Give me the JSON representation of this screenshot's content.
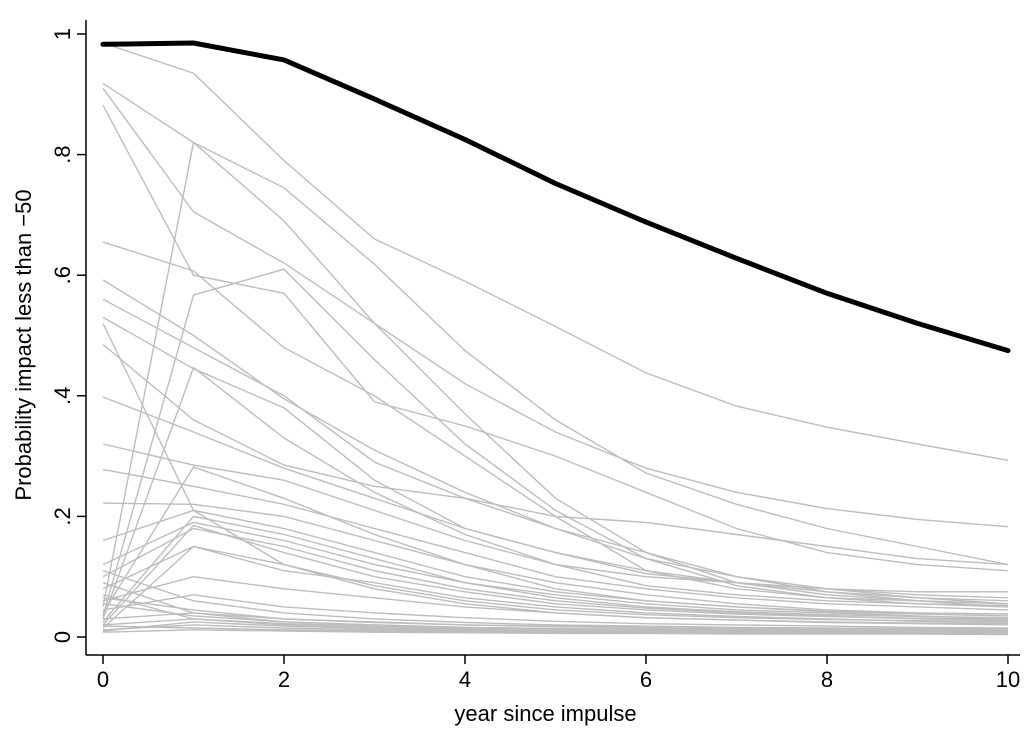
{
  "chart_data": {
    "type": "line",
    "title": "",
    "xlabel": "year since impulse",
    "ylabel": "Probability impact less than −50",
    "xlim": [
      0,
      10
    ],
    "ylim": [
      0,
      1
    ],
    "x_ticks": [
      0,
      2,
      4,
      6,
      8,
      10
    ],
    "x_tick_labels": [
      "0",
      "2",
      "4",
      "6",
      "8",
      "10"
    ],
    "y_ticks": [
      0,
      0.2,
      0.4,
      0.6,
      0.8,
      1
    ],
    "y_tick_labels": [
      "0",
      ".2",
      ".4",
      ".6",
      ".8",
      "1"
    ],
    "grid": false,
    "legend": "none",
    "x": [
      0,
      1,
      2,
      3,
      4,
      5,
      6,
      7,
      8,
      9,
      10
    ],
    "highlight_color": "#000000",
    "background_color": "#bdbdbd",
    "highlight_series": {
      "values": [
        0.983,
        0.985,
        0.957,
        0.892,
        0.825,
        0.752,
        0.688,
        0.628,
        0.57,
        0.52,
        0.475
      ]
    },
    "background_series": [
      {
        "values": [
          0.985,
          0.935,
          0.79,
          0.66,
          0.59,
          0.515,
          0.438,
          0.383,
          0.348,
          0.32,
          0.293
        ]
      },
      {
        "values": [
          0.918,
          0.82,
          0.745,
          0.618,
          0.475,
          0.36,
          0.272,
          0.22,
          0.18,
          0.15,
          0.12
        ]
      },
      {
        "values": [
          0.91,
          0.705,
          0.62,
          0.52,
          0.42,
          0.34,
          0.28,
          0.24,
          0.213,
          0.195,
          0.183
        ]
      },
      {
        "values": [
          0.882,
          0.6,
          0.57,
          0.39,
          0.35,
          0.3,
          0.24,
          0.18,
          0.14,
          0.12,
          0.11
        ]
      },
      {
        "values": [
          0.655,
          0.607,
          0.48,
          0.4,
          0.3,
          0.2,
          0.11,
          0.08,
          0.065,
          0.06,
          0.055
        ]
      },
      {
        "values": [
          0.592,
          0.5,
          0.395,
          0.31,
          0.24,
          0.18,
          0.13,
          0.1,
          0.08,
          0.065,
          0.055
        ]
      },
      {
        "values": [
          0.56,
          0.48,
          0.4,
          0.29,
          0.23,
          0.18,
          0.14,
          0.1,
          0.075,
          0.06,
          0.05
        ]
      },
      {
        "values": [
          0.53,
          0.445,
          0.38,
          0.26,
          0.18,
          0.14,
          0.105,
          0.09,
          0.08,
          0.075,
          0.075
        ]
      },
      {
        "values": [
          0.485,
          0.36,
          0.285,
          0.25,
          0.23,
          0.2,
          0.19,
          0.17,
          0.15,
          0.13,
          0.12
        ]
      },
      {
        "values": [
          0.398,
          0.34,
          0.28,
          0.23,
          0.18,
          0.14,
          0.11,
          0.09,
          0.075,
          0.065,
          0.06
        ]
      },
      {
        "values": [
          0.32,
          0.285,
          0.26,
          0.21,
          0.16,
          0.12,
          0.1,
          0.09,
          0.08,
          0.07,
          0.065
        ]
      },
      {
        "values": [
          0.278,
          0.25,
          0.22,
          0.18,
          0.14,
          0.1,
          0.08,
          0.065,
          0.055,
          0.05,
          0.045
        ]
      },
      {
        "values": [
          0.222,
          0.22,
          0.2,
          0.16,
          0.12,
          0.09,
          0.07,
          0.055,
          0.045,
          0.04,
          0.038
        ]
      },
      {
        "values": [
          0.16,
          0.21,
          0.18,
          0.14,
          0.1,
          0.075,
          0.06,
          0.05,
          0.042,
          0.038,
          0.035
        ]
      },
      {
        "values": [
          0.12,
          0.19,
          0.16,
          0.12,
          0.09,
          0.07,
          0.055,
          0.045,
          0.04,
          0.035,
          0.03
        ]
      },
      {
        "values": [
          0.1,
          0.18,
          0.15,
          0.11,
          0.08,
          0.06,
          0.048,
          0.04,
          0.035,
          0.03,
          0.028
        ]
      },
      {
        "values": [
          0.08,
          0.15,
          0.11,
          0.09,
          0.065,
          0.05,
          0.04,
          0.034,
          0.03,
          0.026,
          0.024
        ]
      },
      {
        "values": [
          0.06,
          0.1,
          0.08,
          0.065,
          0.05,
          0.04,
          0.032,
          0.028,
          0.024,
          0.022,
          0.02
        ]
      },
      {
        "values": [
          0.045,
          0.07,
          0.05,
          0.04,
          0.032,
          0.026,
          0.022,
          0.02,
          0.018,
          0.016,
          0.015
        ]
      },
      {
        "values": [
          0.03,
          0.04,
          0.03,
          0.025,
          0.02,
          0.018,
          0.016,
          0.014,
          0.013,
          0.012,
          0.011
        ]
      },
      {
        "values": [
          0.02,
          0.03,
          0.022,
          0.018,
          0.015,
          0.013,
          0.012,
          0.011,
          0.01,
          0.009,
          0.009
        ]
      },
      {
        "values": [
          0.012,
          0.02,
          0.015,
          0.012,
          0.01,
          0.009,
          0.008,
          0.007,
          0.007,
          0.006,
          0.006
        ]
      },
      {
        "values": [
          0.008,
          0.012,
          0.01,
          0.008,
          0.007,
          0.006,
          0.006,
          0.005,
          0.005,
          0.005,
          0.004
        ]
      },
      {
        "values": [
          0.05,
          0.82,
          0.69,
          0.52,
          0.37,
          0.23,
          0.14,
          0.09,
          0.07,
          0.06,
          0.055
        ]
      },
      {
        "values": [
          0.035,
          0.567,
          0.61,
          0.46,
          0.32,
          0.21,
          0.13,
          0.085,
          0.065,
          0.055,
          0.05
        ]
      },
      {
        "values": [
          0.03,
          0.447,
          0.33,
          0.24,
          0.17,
          0.12,
          0.085,
          0.07,
          0.06,
          0.055,
          0.052
        ]
      },
      {
        "values": [
          0.04,
          0.282,
          0.23,
          0.17,
          0.12,
          0.08,
          0.06,
          0.05,
          0.043,
          0.04,
          0.038
        ]
      },
      {
        "values": [
          0.025,
          0.2,
          0.17,
          0.13,
          0.09,
          0.065,
          0.05,
          0.042,
          0.037,
          0.034,
          0.032
        ]
      },
      {
        "values": [
          0.02,
          0.185,
          0.14,
          0.1,
          0.075,
          0.055,
          0.045,
          0.038,
          0.034,
          0.031,
          0.03
        ]
      },
      {
        "values": [
          0.015,
          0.15,
          0.12,
          0.085,
          0.06,
          0.045,
          0.037,
          0.032,
          0.029,
          0.027,
          0.026
        ]
      },
      {
        "values": [
          0.52,
          0.21,
          0.12,
          0.08,
          0.055,
          0.04,
          0.032,
          0.028,
          0.025,
          0.023,
          0.022
        ]
      },
      {
        "values": [
          0.09,
          0.04,
          0.025,
          0.02,
          0.016,
          0.014,
          0.012,
          0.011,
          0.01,
          0.01,
          0.009
        ]
      },
      {
        "values": [
          0.07,
          0.03,
          0.02,
          0.016,
          0.013,
          0.011,
          0.01,
          0.009,
          0.009,
          0.008,
          0.008
        ]
      },
      {
        "values": [
          0.11,
          0.06,
          0.04,
          0.03,
          0.024,
          0.02,
          0.018,
          0.016,
          0.015,
          0.014,
          0.013
        ]
      },
      {
        "values": [
          0.065,
          0.045,
          0.03,
          0.024,
          0.02,
          0.017,
          0.015,
          0.014,
          0.013,
          0.012,
          0.011
        ]
      },
      {
        "values": [
          0.01,
          0.025,
          0.018,
          0.014,
          0.012,
          0.01,
          0.009,
          0.008,
          0.008,
          0.007,
          0.007
        ]
      },
      {
        "values": [
          0.055,
          0.035,
          0.025,
          0.02,
          0.016,
          0.014,
          0.013,
          0.012,
          0.011,
          0.01,
          0.01
        ]
      },
      {
        "values": [
          0.018,
          0.015,
          0.012,
          0.01,
          0.009,
          0.008,
          0.007,
          0.007,
          0.006,
          0.006,
          0.006
        ]
      }
    ]
  }
}
